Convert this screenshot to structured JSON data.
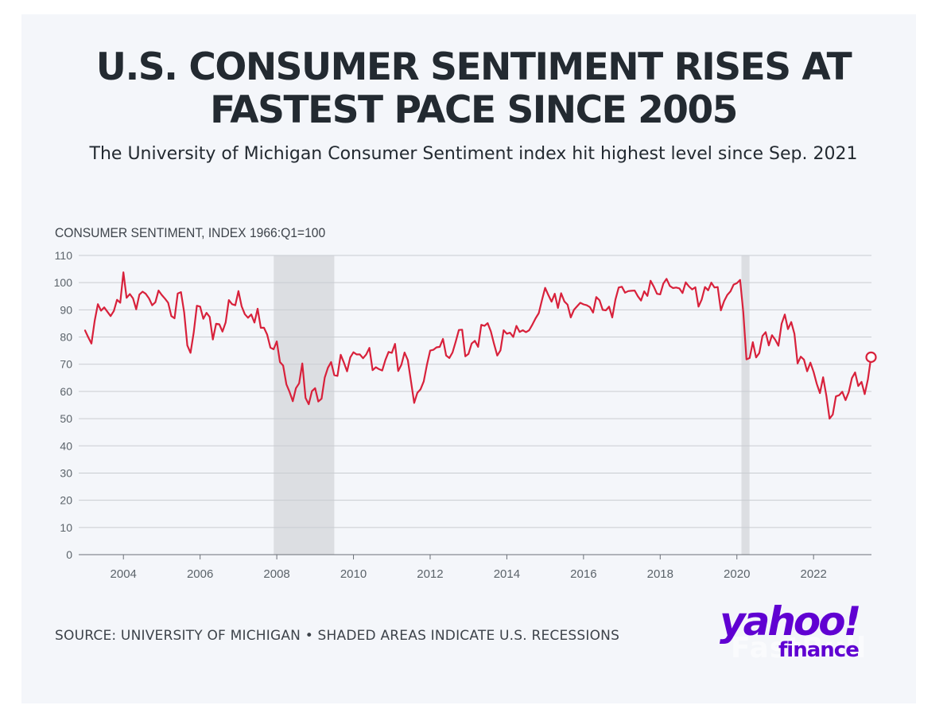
{
  "header": {
    "title_line1": "U.S. CONSUMER SENTIMENT RISES AT",
    "title_line2": "FASTEST PACE SINCE 2005",
    "subtitle": "The University of Michigan Consumer Sentiment index hit highest level since Sep. 2021"
  },
  "footer": {
    "source": "SOURCE: UNIVERSITY OF MICHIGAN • SHADED AREAS INDICATE U.S. RECESSIONS",
    "logo_text": "yahoo!",
    "logo_sub": "finance",
    "watermark": "FastBull"
  },
  "colors": {
    "line": "#d8213b",
    "recession": "#dcdee2",
    "grid": "#c9ccd1",
    "background": "#f4f6fa",
    "title": "#232a31",
    "brand": "#6001d2"
  },
  "chart_data": {
    "type": "line",
    "title": "U.S. CONSUMER SENTIMENT RISES AT FASTEST PACE SINCE 2005",
    "ylabel": "CONSUMER SENTIMENT, INDEX 1966:Q1=100",
    "xlabel": "",
    "ylim": [
      0,
      110
    ],
    "yticks": [
      0,
      10,
      20,
      30,
      40,
      50,
      60,
      70,
      80,
      90,
      100,
      110
    ],
    "xlim": [
      2003.0,
      2023.6
    ],
    "xticks": [
      2004,
      2006,
      2008,
      2010,
      2012,
      2014,
      2016,
      2018,
      2020,
      2022
    ],
    "grid": true,
    "legend": "none",
    "recessions": [
      [
        2007.92,
        2009.5
      ],
      [
        2020.12,
        2020.33
      ]
    ],
    "highlight_last_point": true,
    "series": [
      {
        "name": "Consumer Sentiment",
        "start": "2003-01",
        "frequency": "monthly",
        "values": [
          82.4,
          79.9,
          77.6,
          86.0,
          92.1,
          89.7,
          90.9,
          89.3,
          87.7,
          89.6,
          93.7,
          92.6,
          103.8,
          94.4,
          95.8,
          94.2,
          90.2,
          95.6,
          96.7,
          95.9,
          94.2,
          91.7,
          92.8,
          97.1,
          95.5,
          94.1,
          92.6,
          87.7,
          86.9,
          96.0,
          96.5,
          89.1,
          76.9,
          74.2,
          81.6,
          91.5,
          91.2,
          86.7,
          88.9,
          87.4,
          79.1,
          84.9,
          84.7,
          82.0,
          85.4,
          93.6,
          92.1,
          91.7,
          96.9,
          91.3,
          88.4,
          87.1,
          88.3,
          85.3,
          90.4,
          83.4,
          83.4,
          80.9,
          76.1,
          75.5,
          78.4,
          70.8,
          69.5,
          62.6,
          59.8,
          56.4,
          61.2,
          63.0,
          70.3,
          57.6,
          55.3,
          60.1,
          61.2,
          56.3,
          57.3,
          65.1,
          68.7,
          70.8,
          66.0,
          65.7,
          73.5,
          70.6,
          67.4,
          72.5,
          74.4,
          73.6,
          73.6,
          72.2,
          73.6,
          76.0,
          67.8,
          68.9,
          68.2,
          67.7,
          71.6,
          74.5,
          74.2,
          77.5,
          67.5,
          69.8,
          74.3,
          71.5,
          63.7,
          55.8,
          59.5,
          60.8,
          63.7,
          69.9,
          75.0,
          75.3,
          76.2,
          76.4,
          79.3,
          73.2,
          72.3,
          74.3,
          78.3,
          82.6,
          82.7,
          72.9,
          73.8,
          77.6,
          78.6,
          76.4,
          84.5,
          84.1,
          85.1,
          82.1,
          77.5,
          73.2,
          75.1,
          82.5,
          81.2,
          81.6,
          80.0,
          84.1,
          81.9,
          82.5,
          81.8,
          82.5,
          84.6,
          86.9,
          88.8,
          93.6,
          98.1,
          95.4,
          93.0,
          95.9,
          90.7,
          96.1,
          93.1,
          91.9,
          87.2,
          90.0,
          91.3,
          92.6,
          92.0,
          91.7,
          91.0,
          89.0,
          94.7,
          93.5,
          90.0,
          89.8,
          91.2,
          87.2,
          93.8,
          98.2,
          98.5,
          96.3,
          96.9,
          97.0,
          97.1,
          95.0,
          93.4,
          96.8,
          95.1,
          100.7,
          98.5,
          95.9,
          95.7,
          99.7,
          101.4,
          98.8,
          98.0,
          98.2,
          97.9,
          96.2,
          100.1,
          98.6,
          97.5,
          98.3,
          91.2,
          93.8,
          98.4,
          97.2,
          100.0,
          98.2,
          98.4,
          89.8,
          93.2,
          95.5,
          96.8,
          99.3,
          99.8,
          101.0,
          89.1,
          71.8,
          72.3,
          78.1,
          72.5,
          74.1,
          80.4,
          81.8,
          76.9,
          80.7,
          79.0,
          76.8,
          84.9,
          88.3,
          82.9,
          85.5,
          81.2,
          70.3,
          72.8,
          71.7,
          67.4,
          70.6,
          67.2,
          62.8,
          59.4,
          65.2,
          58.4,
          50.0,
          51.5,
          58.2,
          58.6,
          59.9,
          56.8,
          59.7,
          64.9,
          67.0,
          62.0,
          63.5,
          59.0,
          64.4,
          72.6
        ]
      }
    ]
  }
}
